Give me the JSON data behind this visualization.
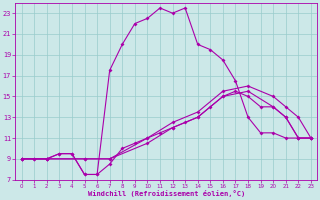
{
  "xlabel": "Windchill (Refroidissement éolien,°C)",
  "bg_color": "#cce8e8",
  "grid_color": "#99cccc",
  "line_color": "#aa00aa",
  "xlim_min": -0.5,
  "xlim_max": 23.5,
  "ylim_min": 7,
  "ylim_max": 24,
  "xticks": [
    0,
    1,
    2,
    3,
    4,
    5,
    6,
    7,
    8,
    9,
    10,
    11,
    12,
    13,
    14,
    15,
    16,
    17,
    18,
    19,
    20,
    21,
    22,
    23
  ],
  "yticks": [
    7,
    9,
    11,
    13,
    15,
    17,
    19,
    21,
    23
  ],
  "curve1_x": [
    0,
    1,
    2,
    3,
    4,
    5,
    6,
    7,
    8,
    9,
    10,
    11,
    12,
    13,
    14,
    15,
    16,
    17,
    18,
    19,
    20,
    21,
    22,
    23
  ],
  "curve1_y": [
    9,
    9,
    9,
    9.5,
    9.5,
    7.5,
    7.5,
    8.5,
    10,
    10.5,
    11,
    11.5,
    12,
    12.5,
    13,
    14,
    15,
    15.5,
    15,
    14,
    14,
    13,
    11,
    11
  ],
  "curve2_x": [
    0,
    1,
    2,
    3,
    4,
    5,
    6,
    7,
    8,
    9,
    10,
    11,
    12,
    13,
    14,
    15,
    16,
    17,
    18,
    19,
    20,
    21,
    22,
    23
  ],
  "curve2_y": [
    9,
    9,
    9,
    9.5,
    9.5,
    7.5,
    7.5,
    17.5,
    20,
    22,
    22.5,
    23.5,
    23,
    23.5,
    20,
    19.5,
    18.5,
    16.5,
    13,
    11.5,
    11.5,
    11,
    11,
    11
  ],
  "curve3_x": [
    0,
    2,
    5,
    7,
    10,
    12,
    14,
    16,
    18,
    20,
    21,
    22,
    23
  ],
  "curve3_y": [
    9,
    9,
    9,
    9,
    10.5,
    12,
    13,
    15,
    15.5,
    14,
    13,
    11,
    11
  ],
  "curve4_x": [
    0,
    2,
    5,
    7,
    10,
    12,
    14,
    16,
    18,
    20,
    21,
    22,
    23
  ],
  "curve4_y": [
    9,
    9,
    9,
    9,
    11,
    12.5,
    13.5,
    15.5,
    16,
    15,
    14,
    13,
    11
  ]
}
